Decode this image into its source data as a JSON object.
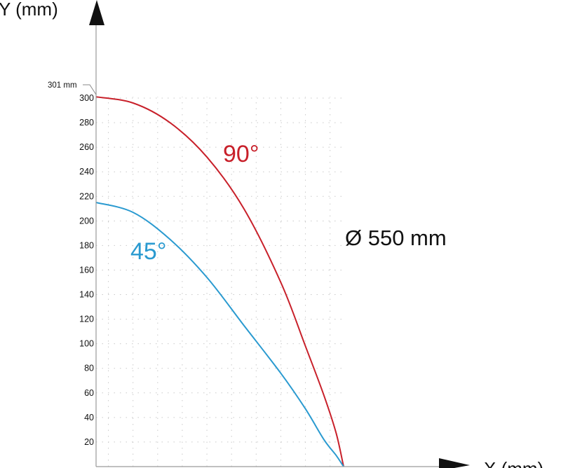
{
  "chart_data": {
    "type": "line",
    "xlabel": "X (mm)",
    "ylabel": "Y (mm)",
    "ylim": [
      0,
      301
    ],
    "xlim": [
      0,
      201
    ],
    "y_ticks": [
      20,
      40,
      60,
      80,
      100,
      120,
      140,
      160,
      180,
      200,
      220,
      240,
      260,
      280,
      300
    ],
    "grid": true,
    "annotations": {
      "max_reach": "301 mm",
      "diameter": "Ø 550 mm"
    },
    "series": [
      {
        "name": "90°",
        "color": "#c8202a",
        "x": [
          0,
          30,
          60,
          90,
          120,
          150,
          170,
          185,
          195,
          201
        ],
        "y": [
          301,
          296,
          280,
          252,
          210,
          150,
          98,
          58,
          27,
          0
        ]
      },
      {
        "name": "45°",
        "color": "#2a9ad0",
        "x": [
          0,
          30,
          60,
          90,
          120,
          150,
          170,
          185,
          195,
          201
        ],
        "y": [
          215,
          207,
          185,
          154,
          115,
          76,
          47,
          22,
          9,
          0
        ]
      }
    ]
  }
}
